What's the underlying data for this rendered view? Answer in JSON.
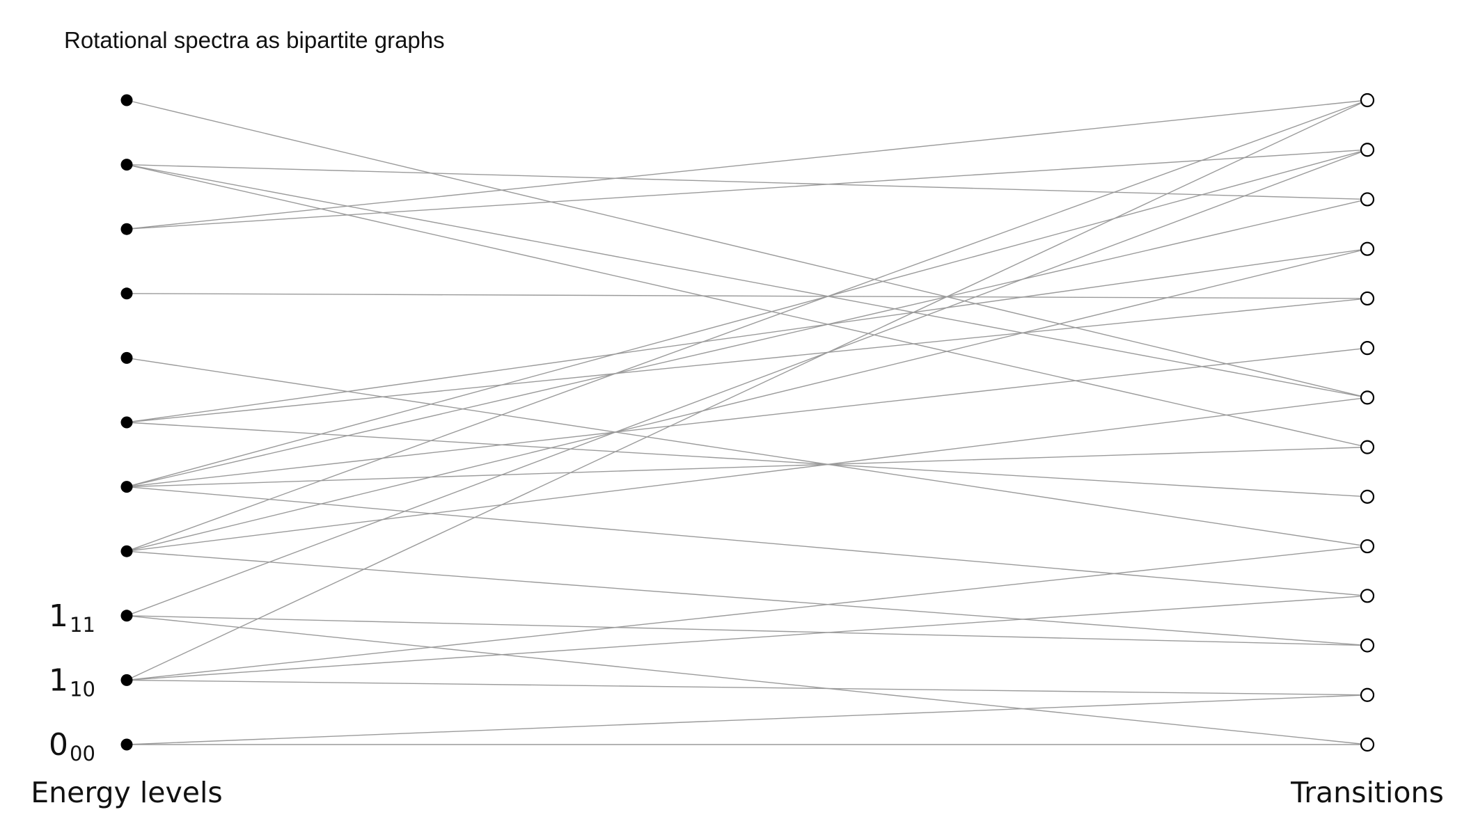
{
  "title": "Rotational spectra as bipartite graphs",
  "left_axis_label": "Energy levels",
  "right_axis_label": "Transitions",
  "energy_level_count": 11,
  "transition_count": 14,
  "energy_labels": [
    {
      "index": 0,
      "main": "0",
      "sub": "00"
    },
    {
      "index": 1,
      "main": "1",
      "sub": "10"
    },
    {
      "index": 2,
      "main": "1",
      "sub": "11"
    }
  ],
  "edges": [
    [
      0,
      0
    ],
    [
      0,
      1
    ],
    [
      1,
      1
    ],
    [
      1,
      3
    ],
    [
      1,
      4
    ],
    [
      1,
      13
    ],
    [
      2,
      0
    ],
    [
      2,
      2
    ],
    [
      2,
      12
    ],
    [
      3,
      2
    ],
    [
      3,
      7
    ],
    [
      3,
      10
    ],
    [
      3,
      13
    ],
    [
      4,
      3
    ],
    [
      4,
      6
    ],
    [
      4,
      8
    ],
    [
      4,
      11
    ],
    [
      4,
      12
    ],
    [
      5,
      5
    ],
    [
      5,
      9
    ],
    [
      5,
      10
    ],
    [
      6,
      4
    ],
    [
      7,
      9
    ],
    [
      8,
      12
    ],
    [
      8,
      13
    ],
    [
      9,
      6
    ],
    [
      9,
      7
    ],
    [
      9,
      11
    ],
    [
      10,
      7
    ]
  ],
  "colors": {
    "edge": "#9a9a9a",
    "energy_node": "#000000",
    "transition_node_fill": "#ffffff",
    "transition_node_stroke": "#000000"
  }
}
